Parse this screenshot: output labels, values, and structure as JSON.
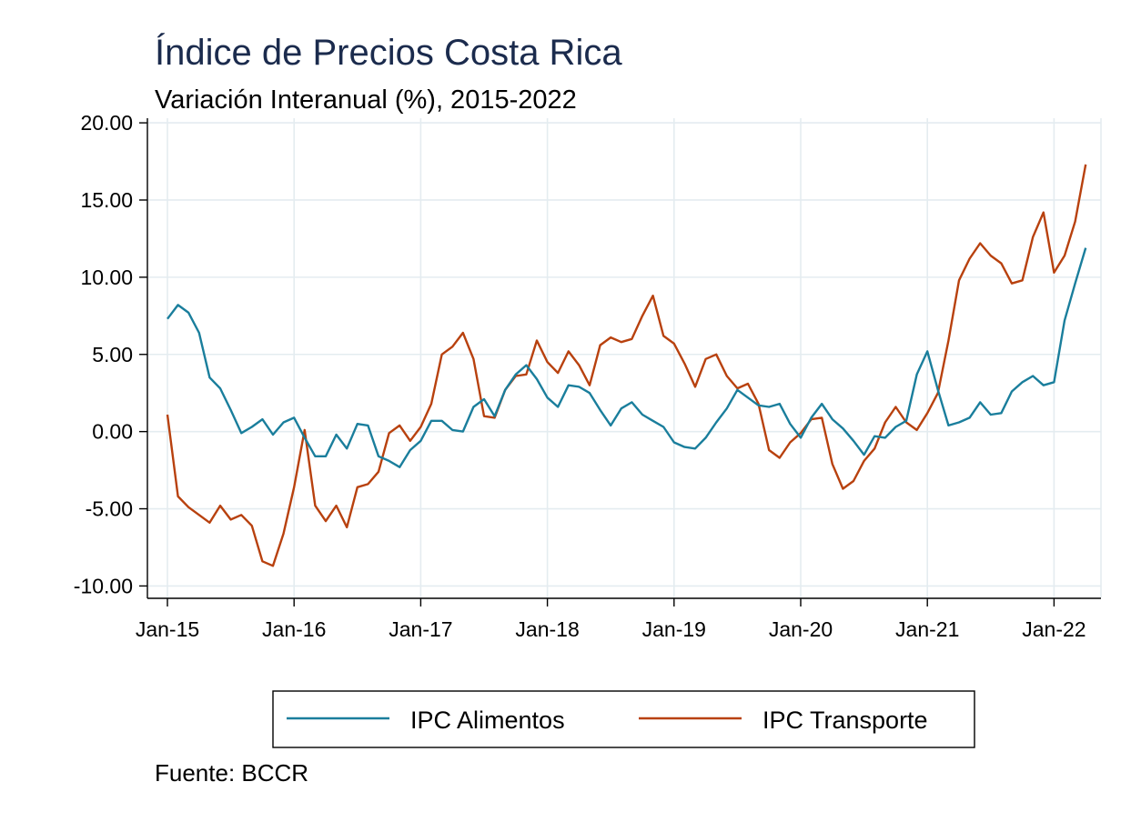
{
  "chart_data": {
    "type": "line",
    "title": "Índice de Precios Costa Rica",
    "subtitle": "Variación Interanual (%), 2015-2022",
    "source": "Fuente: BCCR",
    "xlabel": "",
    "ylabel": "",
    "x_start": "2015-01",
    "x_ticks": [
      "Jan-15",
      "Jan-16",
      "Jan-17",
      "Jan-18",
      "Jan-19",
      "Jan-20",
      "Jan-21",
      "Jan-22"
    ],
    "y_ticks": [
      "20.00",
      "15.00",
      "10.00",
      "5.00",
      "0.00",
      "-5.00",
      "-10.00"
    ],
    "ylim": [
      -10.8,
      20.3
    ],
    "grid": true,
    "legend_position": "bottom",
    "x": [
      "2015-01",
      "2015-02",
      "2015-03",
      "2015-04",
      "2015-05",
      "2015-06",
      "2015-07",
      "2015-08",
      "2015-09",
      "2015-10",
      "2015-11",
      "2015-12",
      "2016-01",
      "2016-02",
      "2016-03",
      "2016-04",
      "2016-05",
      "2016-06",
      "2016-07",
      "2016-08",
      "2016-09",
      "2016-10",
      "2016-11",
      "2016-12",
      "2017-01",
      "2017-02",
      "2017-03",
      "2017-04",
      "2017-05",
      "2017-06",
      "2017-07",
      "2017-08",
      "2017-09",
      "2017-10",
      "2017-11",
      "2017-12",
      "2018-01",
      "2018-02",
      "2018-03",
      "2018-04",
      "2018-05",
      "2018-06",
      "2018-07",
      "2018-08",
      "2018-09",
      "2018-10",
      "2018-11",
      "2018-12",
      "2019-01",
      "2019-02",
      "2019-03",
      "2019-04",
      "2019-05",
      "2019-06",
      "2019-07",
      "2019-08",
      "2019-09",
      "2019-10",
      "2019-11",
      "2019-12",
      "2020-01",
      "2020-02",
      "2020-03",
      "2020-04",
      "2020-05",
      "2020-06",
      "2020-07",
      "2020-08",
      "2020-09",
      "2020-10",
      "2020-11",
      "2020-12",
      "2021-01",
      "2021-02",
      "2021-03",
      "2021-04",
      "2021-05",
      "2021-06",
      "2021-07",
      "2021-08",
      "2021-09",
      "2021-10",
      "2021-11",
      "2021-12",
      "2022-01",
      "2022-02",
      "2022-03",
      "2022-04"
    ],
    "series": [
      {
        "name": "IPC Alimentos",
        "color": "#1a7e9c",
        "values": [
          7.3,
          8.2,
          7.7,
          6.4,
          3.5,
          2.8,
          1.4,
          -0.1,
          0.3,
          0.8,
          -0.2,
          0.6,
          0.9,
          -0.4,
          -1.6,
          -1.6,
          -0.2,
          -1.1,
          0.5,
          0.4,
          -1.6,
          -1.9,
          -2.3,
          -1.2,
          -0.6,
          0.7,
          0.7,
          0.1,
          0.0,
          1.6,
          2.1,
          1.0,
          2.7,
          3.7,
          4.3,
          3.4,
          2.2,
          1.6,
          3.0,
          2.9,
          2.5,
          1.4,
          0.4,
          1.5,
          1.9,
          1.1,
          0.7,
          0.3,
          -0.7,
          -1.0,
          -1.1,
          -0.4,
          0.6,
          1.5,
          2.7,
          2.2,
          1.7,
          1.6,
          1.8,
          0.5,
          -0.4,
          0.9,
          1.8,
          0.8,
          0.2,
          -0.6,
          -1.5,
          -0.3,
          -0.4,
          0.3,
          0.7,
          3.7,
          5.2,
          2.7,
          0.4,
          0.6,
          0.9,
          1.9,
          1.1,
          1.2,
          2.6,
          3.2,
          3.6,
          3.0,
          3.2,
          7.2,
          9.6,
          11.9
        ]
      },
      {
        "name": "IPC Transporte",
        "color": "#b8410e",
        "values": [
          1.1,
          -4.2,
          -4.9,
          -5.4,
          -5.9,
          -4.8,
          -5.7,
          -5.4,
          -6.1,
          -8.4,
          -8.7,
          -6.6,
          -3.6,
          0.1,
          -4.8,
          -5.8,
          -4.8,
          -6.2,
          -3.6,
          -3.4,
          -2.6,
          -0.1,
          0.4,
          -0.6,
          0.3,
          1.8,
          5.0,
          5.5,
          6.4,
          4.7,
          1.0,
          0.9,
          2.7,
          3.6,
          3.7,
          5.9,
          4.5,
          3.8,
          5.2,
          4.3,
          3.0,
          5.6,
          6.1,
          5.8,
          6.0,
          7.5,
          8.8,
          6.2,
          5.7,
          4.4,
          2.9,
          4.7,
          5.0,
          3.6,
          2.8,
          3.1,
          1.8,
          -1.2,
          -1.7,
          -0.7,
          -0.1,
          0.8,
          0.9,
          -2.1,
          -3.7,
          -3.2,
          -1.9,
          -1.1,
          0.6,
          1.6,
          0.6,
          0.1,
          1.2,
          2.5,
          5.9,
          9.8,
          11.2,
          12.2,
          11.4,
          10.9,
          9.6,
          9.8,
          12.6,
          14.2,
          10.3,
          11.4,
          13.6,
          17.3
        ]
      }
    ]
  }
}
